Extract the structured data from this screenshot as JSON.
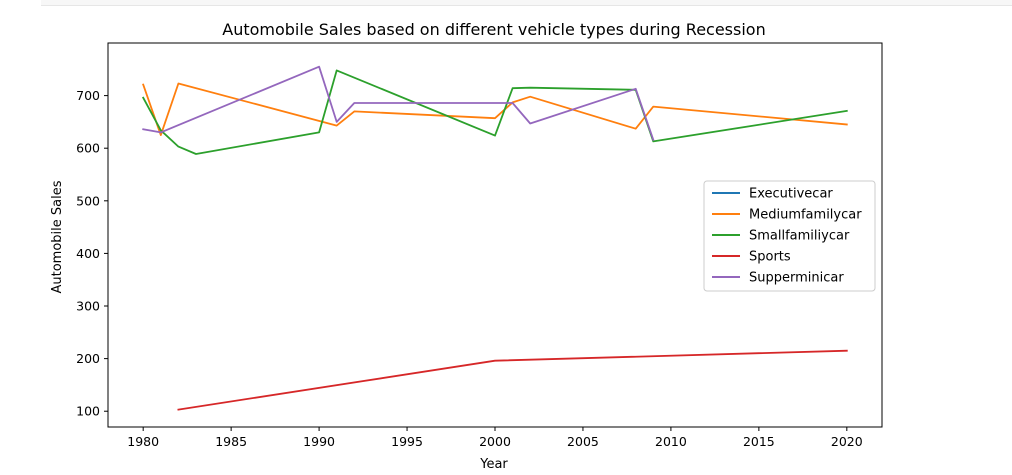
{
  "chart_data": {
    "type": "line",
    "title": "Automobile Sales based on different vehicle types during Recession",
    "xlabel": "Year",
    "ylabel": "Automobile Sales",
    "xlim": [
      1978,
      2022
    ],
    "ylim": [
      70,
      800
    ],
    "xticks": [
      1980,
      1985,
      1990,
      1995,
      2000,
      2005,
      2010,
      2015,
      2020
    ],
    "yticks": [
      100,
      200,
      300,
      400,
      500,
      600,
      700
    ],
    "grid": false,
    "legend_position": "center-right",
    "series": [
      {
        "name": "Executivecar",
        "color": "#1f77b4",
        "x": [],
        "y": []
      },
      {
        "name": "Mediumfamilycar",
        "color": "#ff7f0e",
        "x": [
          1980,
          1981,
          1982,
          1991,
          1992,
          2000,
          2001,
          2002,
          2008,
          2009,
          2020
        ],
        "y": [
          721,
          625,
          723,
          643,
          670,
          657,
          687,
          698,
          637,
          679,
          645
        ]
      },
      {
        "name": "Smallfamiliycar",
        "color": "#2ca02c",
        "x": [
          1980,
          1981,
          1982,
          1983,
          1990,
          1991,
          2000,
          2001,
          2002,
          2008,
          2009,
          2020
        ],
        "y": [
          696,
          634,
          603,
          589,
          630,
          748,
          624,
          714,
          715,
          711,
          613,
          671
        ]
      },
      {
        "name": "Sports",
        "color": "#d62728",
        "x": [
          1982,
          2000,
          2020
        ],
        "y": [
          103,
          196,
          215
        ]
      },
      {
        "name": "Supperminicar",
        "color": "#9467bd",
        "x": [
          1980,
          1981,
          1990,
          1991,
          1992,
          2000,
          2001,
          2002,
          2008,
          2009
        ],
        "y": [
          636,
          630,
          755,
          650,
          686,
          686,
          686,
          647,
          713,
          616
        ]
      }
    ]
  }
}
